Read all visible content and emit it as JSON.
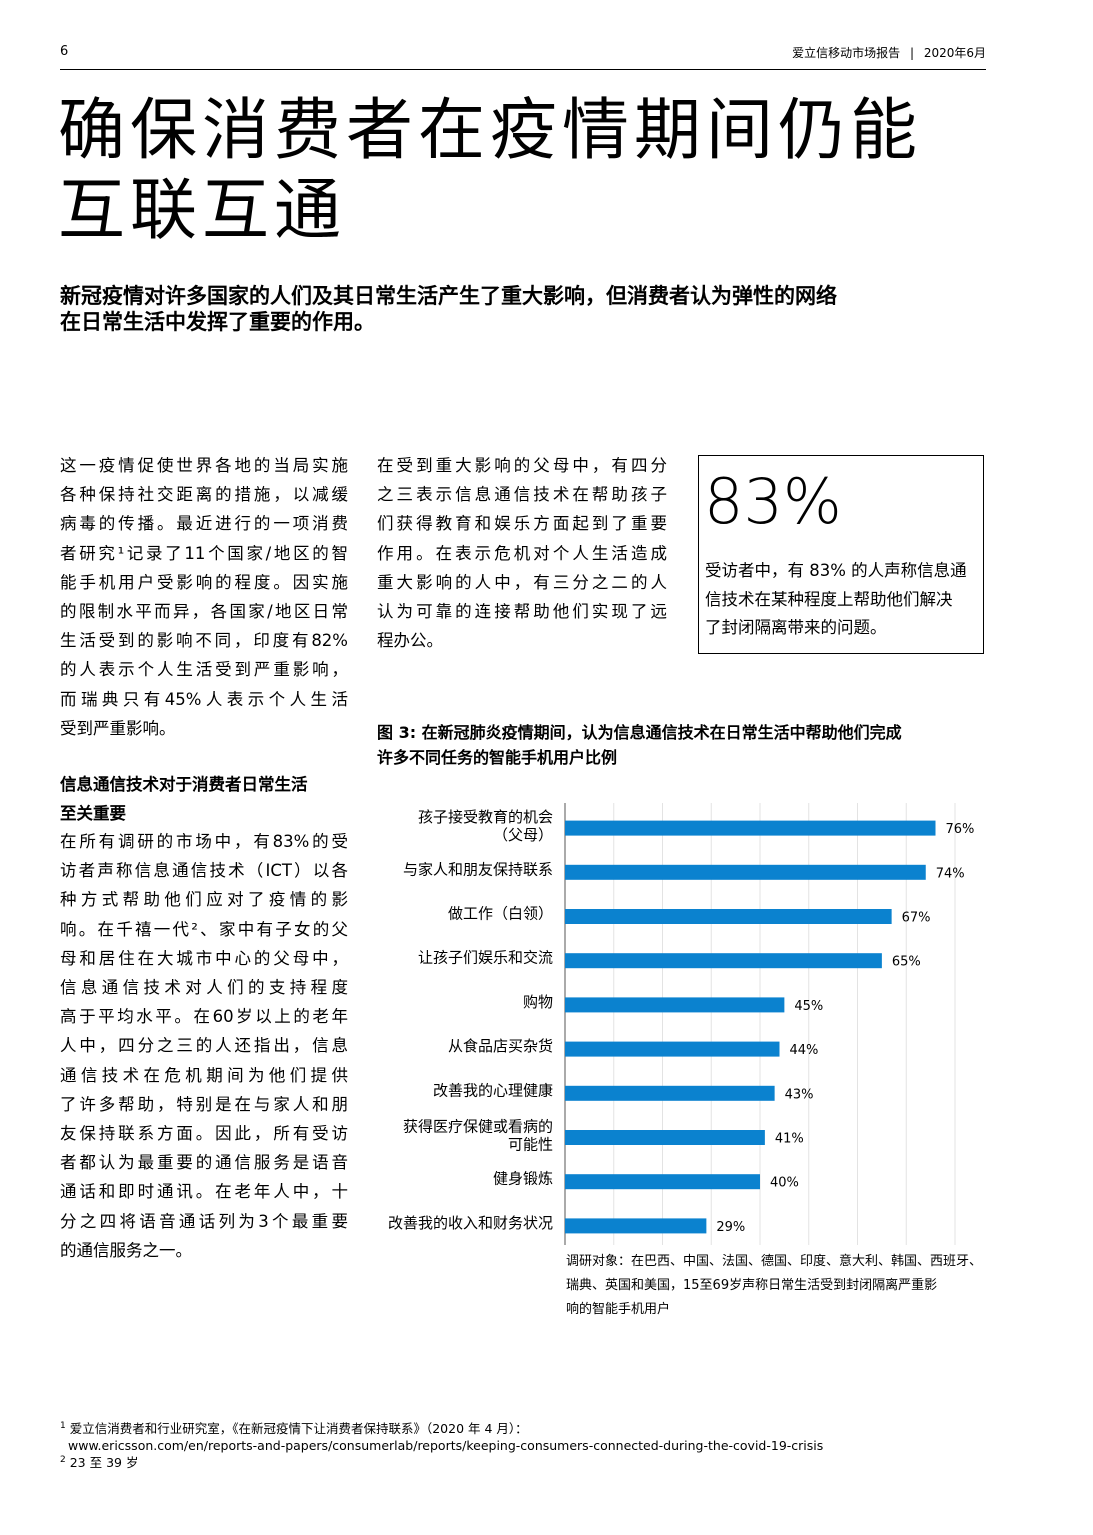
{
  "header": {
    "page_number": "6",
    "publication": "爱立信移动市场报告",
    "separator": "|",
    "date": "2020年6月"
  },
  "title": {
    "line1": "确保消费者在疫情期间仍能",
    "line2": "互联互通"
  },
  "lead": {
    "line1": "新冠疫情对许多国家的人们及其日常生活产生了重大影响，但消费者认为弹性的网络",
    "line2": "在日常生活中发挥了重要的作用。"
  },
  "column1": {
    "p1_lines": [
      "这一疫情促使世界各地的当局实施",
      "各种保持社交距离的措施，以减缓",
      "病毒的传播。最近进行的一项消费",
      "者研究¹记录了11个国家/地区的智",
      "能手机用户受影响的程度。因实施",
      "的限制水平而异，各国家/地区日常",
      "生活受到的影响不同，印度有82%",
      "的人表示个人生活受到严重影响，",
      "而瑞典只有45%人表示个人生活",
      "受到严重影响。"
    ],
    "heading_line1": "信息通信技术对于消费者日常生活",
    "heading_line2": "至关重要",
    "p2_lines": [
      "在所有调研的市场中，有83%的受",
      "访者声称信息通信技术（ICT）以各",
      "种方式帮助他们应对了疫情的影",
      "响。在千禧一代²、家中有子女的父",
      "母和居住在大城市中心的父母中，",
      "信息通信技术对人们的支持程度",
      "高于平均水平。在60岁以上的老年",
      "人中，四分之三的人还指出，信息",
      "通信技术在危机期间为他们提供",
      "了许多帮助，特别是在与家人和朋",
      "友保持联系方面。因此，所有受访",
      "者都认为最重要的通信服务是语音",
      "通话和即时通讯。在老年人中，十",
      "分之四将语音通话列为3个最重要",
      "的通信服务之一。"
    ]
  },
  "column2": {
    "lines": [
      "在受到重大影响的父母中，有四分",
      "之三表示信息通信技术在帮助孩子",
      "们获得教育和娱乐方面起到了重要",
      "作用。在表示危机对个人生活造成",
      "重大影响的人中，有三分之二的人",
      "认为可靠的连接帮助他们实现了远",
      "程办公。"
    ]
  },
  "callout": {
    "figure": "83%",
    "line1": "受访者中，有 83% 的人声称信息通",
    "line2": "信技术在某种程度上帮助他们解决",
    "line3": "了封闭隔离带来的问题。"
  },
  "chart_data": {
    "type": "bar",
    "orientation": "horizontal",
    "title_line1": "图 3: 在新冠肺炎疫情期间，认为信息通信技术在日常生活中帮助他们完成",
    "title_line2": "许多不同任务的智能手机用户比例",
    "categories": [
      [
        "孩子接受教育的机会",
        "（父母）"
      ],
      [
        "与家人和朋友保持联系"
      ],
      [
        "做工作（白领）"
      ],
      [
        "让孩子们娱乐和交流"
      ],
      [
        "购物"
      ],
      [
        "从食品店买杂货"
      ],
      [
        "改善我的心理健康"
      ],
      [
        "获得医疗保健或看病的",
        "可能性"
      ],
      [
        "健身锻炼"
      ],
      [
        "改善我的收入和财务状况"
      ]
    ],
    "values": [
      76,
      74,
      67,
      65,
      45,
      44,
      43,
      41,
      40,
      29
    ],
    "value_labels": [
      "76%",
      "74%",
      "67%",
      "65%",
      "45%",
      "44%",
      "43%",
      "41%",
      "40%",
      "29%"
    ],
    "unit": "%",
    "xlim": [
      0,
      80
    ],
    "grid": true,
    "bar_color": "#0b82cf",
    "note_lines": [
      "调研对象：在巴西、中国、法国、德国、印度、意大利、韩国、西班牙、",
      "瑞典、英国和美国，15至69岁声称日常生活受到封闭隔离严重影",
      "响的智能手机用户"
    ]
  },
  "footnotes": {
    "fn1_mark": "1",
    "fn1_text": "爱立信消费者和行业研究室，《在新冠疫情下让消费者保持联系》（2020 年 4 月）：",
    "fn1_url": "www.ericsson.com/en/reports-and-papers/consumerlab/reports/keeping-consumers-connected-during-the-covid-19-crisis",
    "fn2_mark": "2",
    "fn2_text": "23 至 39 岁"
  }
}
